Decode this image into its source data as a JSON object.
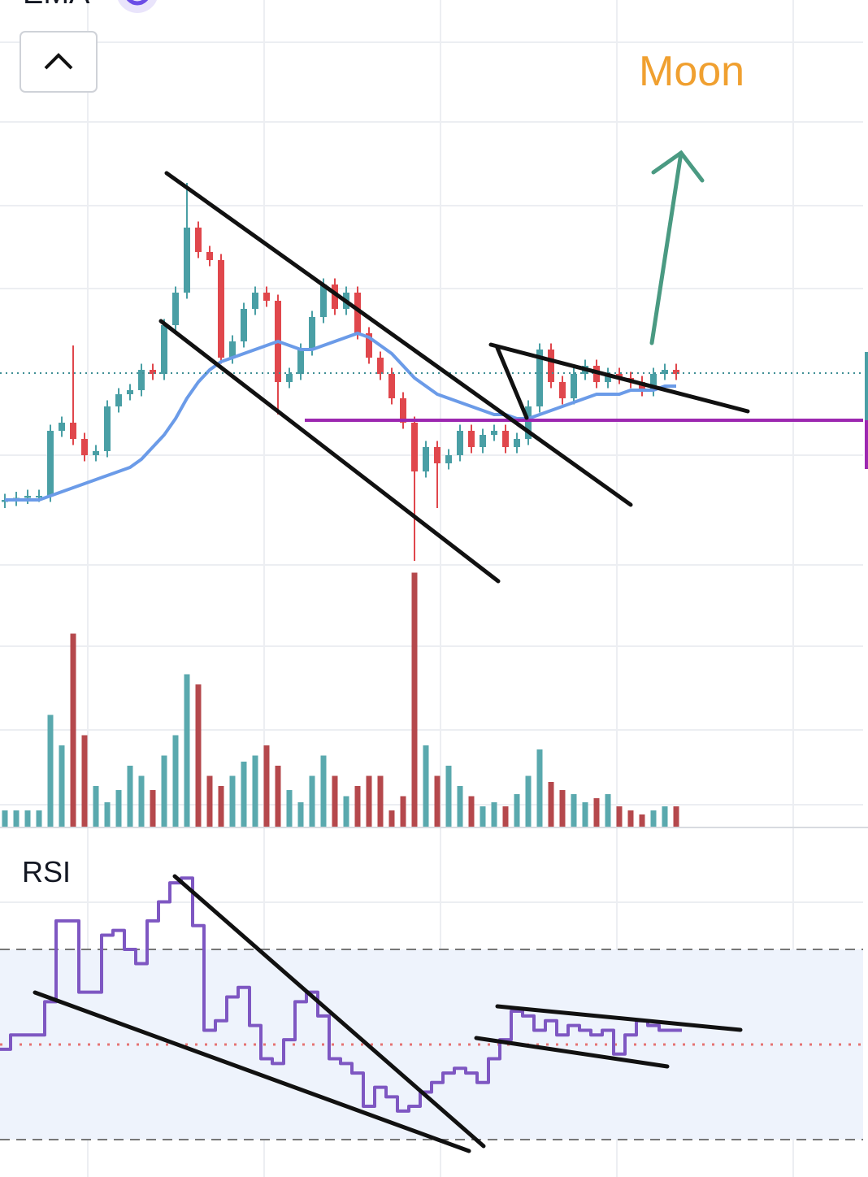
{
  "chart_data": [
    {
      "type": "candlestick",
      "up_color": "#4a9fa5",
      "down_color": "#e0474c",
      "open": [
        16.5,
        17,
        17.5,
        18,
        18,
        34,
        36,
        32,
        28,
        29,
        40,
        43,
        44,
        49,
        48,
        60,
        68,
        84,
        78,
        76,
        52,
        56,
        64,
        68,
        66,
        46,
        48,
        54,
        62,
        70,
        64,
        68,
        58,
        52,
        48,
        42,
        36,
        24,
        30,
        26,
        28,
        34,
        30,
        33,
        34,
        30,
        32,
        40,
        54,
        46,
        42,
        48,
        50,
        46,
        48,
        47,
        46,
        44,
        48,
        49
      ],
      "high": [
        18.5,
        19,
        19.5,
        19.5,
        35.5,
        37.5,
        55,
        33.5,
        30.5,
        41.5,
        44.5,
        45.5,
        50.5,
        50.5,
        61.5,
        69.5,
        95,
        85.5,
        79.5,
        77.5,
        57.5,
        65.5,
        69.5,
        69.5,
        67.5,
        49.5,
        55.5,
        63.5,
        71.5,
        71.5,
        69.5,
        69.5,
        59.5,
        53.5,
        49.5,
        43.5,
        37.5,
        31.5,
        31.5,
        29.5,
        35.5,
        35.5,
        34.5,
        35.5,
        35.5,
        33.5,
        41.5,
        55.5,
        55.5,
        47.5,
        49.5,
        51.5,
        51.5,
        49.5,
        49.5,
        48.5,
        47.5,
        49.5,
        50.5,
        50.5
      ],
      "low": [
        15,
        15.5,
        16,
        16.5,
        16.5,
        32.5,
        30.5,
        26.5,
        26.5,
        27.5,
        38.5,
        41.5,
        42.5,
        46.5,
        46.5,
        58.5,
        66.5,
        76.5,
        74.5,
        50.5,
        50.5,
        54.5,
        62.5,
        64.5,
        38,
        44.5,
        46.5,
        52.5,
        60.5,
        62.5,
        62.5,
        56.5,
        50.5,
        46.5,
        40.5,
        34.5,
        2,
        22.5,
        15,
        24.5,
        26.5,
        28.5,
        28.5,
        31.5,
        28.5,
        28.5,
        30.5,
        38.5,
        44.5,
        40.5,
        40.5,
        46.5,
        44.5,
        44.5,
        45.5,
        44.5,
        42.5,
        42.5,
        46.5,
        46.5
      ],
      "close": [
        17,
        17.5,
        18,
        18,
        34,
        36,
        32,
        28,
        29,
        40,
        43,
        44,
        49,
        48,
        60,
        68,
        84,
        78,
        76,
        52,
        56,
        64,
        68,
        66,
        46,
        48,
        54,
        62,
        70,
        64,
        68,
        58,
        52,
        48,
        42,
        36,
        24,
        30,
        26,
        28,
        34,
        30,
        33,
        34,
        30,
        32,
        40,
        54,
        46,
        42,
        48,
        50,
        46,
        48,
        47,
        46,
        44,
        48,
        49,
        48
      ],
      "ema": {
        "name": "EMA",
        "color": "#6b9be8",
        "values": [
          17,
          17,
          17,
          17,
          18,
          19,
          20,
          21,
          22,
          23,
          24,
          25,
          27,
          30,
          33,
          37,
          42,
          46,
          49,
          51,
          52,
          53,
          54,
          55,
          56,
          55,
          54,
          54,
          55,
          56,
          57,
          58,
          57,
          55,
          53,
          50,
          47,
          45,
          43,
          42,
          41,
          40,
          39,
          38,
          38,
          37,
          37,
          38,
          39,
          40,
          41,
          42,
          43,
          43,
          43,
          44,
          44,
          44,
          45,
          45
        ]
      },
      "annotations": [
        "Moon"
      ]
    },
    {
      "type": "bar",
      "up_color": "#5aa9ae",
      "down_color": "#b5484c",
      "values": [
        8,
        8,
        8,
        8,
        55,
        40,
        95,
        45,
        20,
        12,
        18,
        30,
        25,
        18,
        35,
        45,
        75,
        70,
        25,
        20,
        25,
        32,
        35,
        40,
        30,
        18,
        12,
        25,
        35,
        25,
        15,
        20,
        25,
        25,
        8,
        15,
        125,
        40,
        25,
        30,
        20,
        15,
        10,
        12,
        10,
        16,
        25,
        38,
        22,
        18,
        16,
        12,
        14,
        16,
        10,
        8,
        6,
        8,
        10,
        10
      ]
    },
    {
      "type": "line",
      "title": "RSI",
      "color": "#7e57c2",
      "bands": [
        30,
        50,
        70
      ],
      "values": [
        49,
        52,
        52,
        52,
        59,
        76,
        76,
        61,
        61,
        73,
        74,
        70,
        67,
        76,
        80,
        84,
        85,
        75,
        53,
        55,
        60,
        62,
        54,
        47,
        46,
        51,
        59,
        61,
        56,
        47,
        46,
        44,
        37,
        41,
        39,
        36,
        37,
        40,
        42,
        44,
        45,
        44,
        42,
        47,
        51,
        57,
        56,
        53,
        55,
        52,
        54,
        53,
        52,
        53,
        48,
        52,
        55,
        54,
        53,
        53
      ]
    }
  ]
}
